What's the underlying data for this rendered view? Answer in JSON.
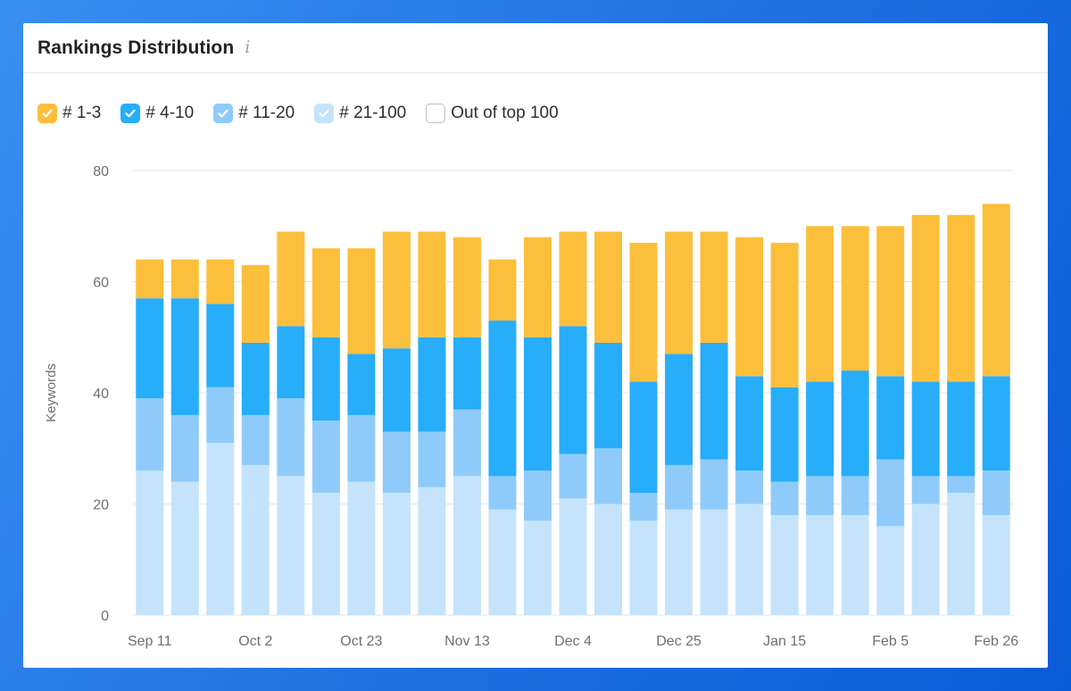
{
  "header": {
    "title": "Rankings Distribution",
    "info_icon": "info-icon"
  },
  "legend": [
    {
      "label": "# 1-3",
      "color": "#fcbf3b",
      "checked": true
    },
    {
      "label": "# 4-10",
      "color": "#27adfa",
      "checked": true
    },
    {
      "label": "# 11-20",
      "color": "#8fcbfa",
      "checked": true
    },
    {
      "label": "# 21-100",
      "color": "#c5e4fc",
      "checked": true
    },
    {
      "label": "Out of top 100",
      "color": "#ffffff",
      "checked": false
    }
  ],
  "chart_data": {
    "type": "bar",
    "stacked": true,
    "title": "Rankings Distribution",
    "ylabel": "Keywords",
    "xlabel": "",
    "ylim": [
      0,
      80
    ],
    "yticks": [
      0,
      20,
      40,
      60,
      80
    ],
    "grid": true,
    "legend_position": "top-left",
    "x_tick_labels": [
      {
        "index": 0,
        "label": "Sep 11"
      },
      {
        "index": 3,
        "label": "Oct 2"
      },
      {
        "index": 6,
        "label": "Oct 23"
      },
      {
        "index": 9,
        "label": "Nov 13"
      },
      {
        "index": 12,
        "label": "Dec 4"
      },
      {
        "index": 15,
        "label": "Dec 25"
      },
      {
        "index": 18,
        "label": "Jan 15"
      },
      {
        "index": 21,
        "label": "Feb 5"
      },
      {
        "index": 24,
        "label": "Feb 26"
      }
    ],
    "series": [
      {
        "name": "# 21-100",
        "color": "#c5e4fc",
        "values": [
          26,
          24,
          31,
          27,
          25,
          22,
          24,
          22,
          23,
          25,
          19,
          17,
          21,
          20,
          17,
          19,
          19,
          20,
          18,
          18,
          18,
          16,
          20,
          22,
          18
        ]
      },
      {
        "name": "# 11-20",
        "color": "#8fcbfa",
        "values": [
          13,
          12,
          10,
          9,
          14,
          13,
          12,
          11,
          10,
          12,
          6,
          9,
          8,
          10,
          5,
          8,
          9,
          6,
          6,
          7,
          7,
          12,
          5,
          3,
          8
        ]
      },
      {
        "name": "# 4-10",
        "color": "#27adfa",
        "values": [
          18,
          21,
          15,
          13,
          13,
          15,
          11,
          15,
          17,
          13,
          28,
          24,
          23,
          19,
          20,
          20,
          21,
          17,
          17,
          17,
          19,
          15,
          17,
          17,
          17
        ]
      },
      {
        "name": "# 1-3",
        "color": "#fcbf3b",
        "values": [
          7,
          7,
          8,
          14,
          17,
          16,
          19,
          21,
          19,
          18,
          11,
          18,
          17,
          20,
          25,
          22,
          20,
          25,
          26,
          28,
          26,
          27,
          30,
          30,
          31
        ]
      }
    ]
  }
}
